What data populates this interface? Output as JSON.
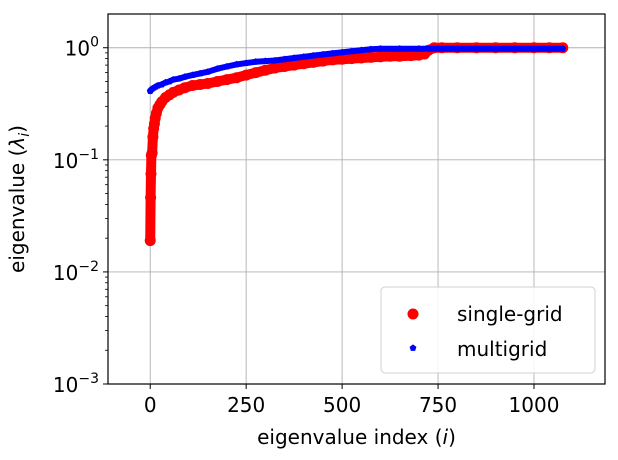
{
  "chart_data": {
    "type": "scatter",
    "title": "",
    "xlabel_prefix": "eigenvalue index (",
    "xlabel_var": "i",
    "xlabel_suffix": ")",
    "ylabel_prefix": "eigenvalue (",
    "ylabel_var": "λ",
    "ylabel_sub": "i",
    "ylabel_suffix": ")",
    "xlim": [
      -110,
      1185
    ],
    "ylim": [
      0.001,
      2.0
    ],
    "yscale": "log",
    "grid": true,
    "legend_position": "lower-right",
    "x_ticks": [
      0,
      250,
      500,
      750,
      1000
    ],
    "x_tick_labels": [
      "0",
      "250",
      "500",
      "750",
      "1000"
    ],
    "y_ticks": [
      0.001,
      0.01,
      0.1,
      1
    ],
    "y_tick_labels": [
      {
        "base": "10",
        "exp": "−3"
      },
      {
        "base": "10",
        "exp": "−2"
      },
      {
        "base": "10",
        "exp": "−1"
      },
      {
        "base": "10",
        "exp": "0"
      }
    ],
    "series": [
      {
        "name": "single-grid",
        "color": "#ff0000",
        "marker": "circle",
        "x": [
          0,
          1,
          2,
          3,
          5,
          7,
          9,
          11,
          13,
          16,
          20,
          25,
          30,
          40,
          50,
          60,
          75,
          90,
          110,
          130,
          150,
          175,
          200,
          225,
          250,
          275,
          300,
          325,
          350,
          375,
          400,
          425,
          450,
          475,
          500,
          525,
          550,
          575,
          600,
          625,
          650,
          680,
          700,
          715,
          725,
          740,
          760,
          800,
          850,
          900,
          950,
          1000,
          1040,
          1075
        ],
        "values": [
          0.019,
          0.046,
          0.075,
          0.11,
          0.115,
          0.16,
          0.19,
          0.21,
          0.235,
          0.26,
          0.29,
          0.31,
          0.33,
          0.36,
          0.38,
          0.4,
          0.42,
          0.44,
          0.46,
          0.47,
          0.48,
          0.5,
          0.52,
          0.54,
          0.57,
          0.6,
          0.63,
          0.66,
          0.68,
          0.7,
          0.72,
          0.74,
          0.76,
          0.78,
          0.79,
          0.8,
          0.81,
          0.82,
          0.83,
          0.84,
          0.84,
          0.85,
          0.86,
          0.88,
          0.95,
          1.0,
          1.0,
          1.0,
          1.0,
          1.0,
          1.0,
          1.0,
          1.0,
          1.0
        ]
      },
      {
        "name": "multigrid",
        "color": "#0000ff",
        "marker": "pentagon",
        "x": [
          0,
          2,
          5,
          10,
          15,
          20,
          30,
          40,
          50,
          60,
          75,
          90,
          110,
          130,
          150,
          175,
          200,
          225,
          250,
          275,
          300,
          325,
          350,
          375,
          400,
          425,
          450,
          475,
          500,
          525,
          550,
          575,
          600,
          650,
          700,
          750,
          800,
          850,
          900,
          950,
          1000,
          1040,
          1075
        ],
        "values": [
          0.41,
          0.42,
          0.43,
          0.44,
          0.45,
          0.46,
          0.47,
          0.49,
          0.5,
          0.52,
          0.53,
          0.55,
          0.57,
          0.59,
          0.61,
          0.65,
          0.68,
          0.71,
          0.73,
          0.75,
          0.76,
          0.77,
          0.79,
          0.81,
          0.83,
          0.85,
          0.87,
          0.89,
          0.91,
          0.93,
          0.95,
          0.97,
          0.98,
          0.98,
          0.98,
          0.98,
          0.98,
          0.98,
          0.98,
          0.98,
          0.98,
          0.98,
          0.98
        ]
      }
    ]
  }
}
